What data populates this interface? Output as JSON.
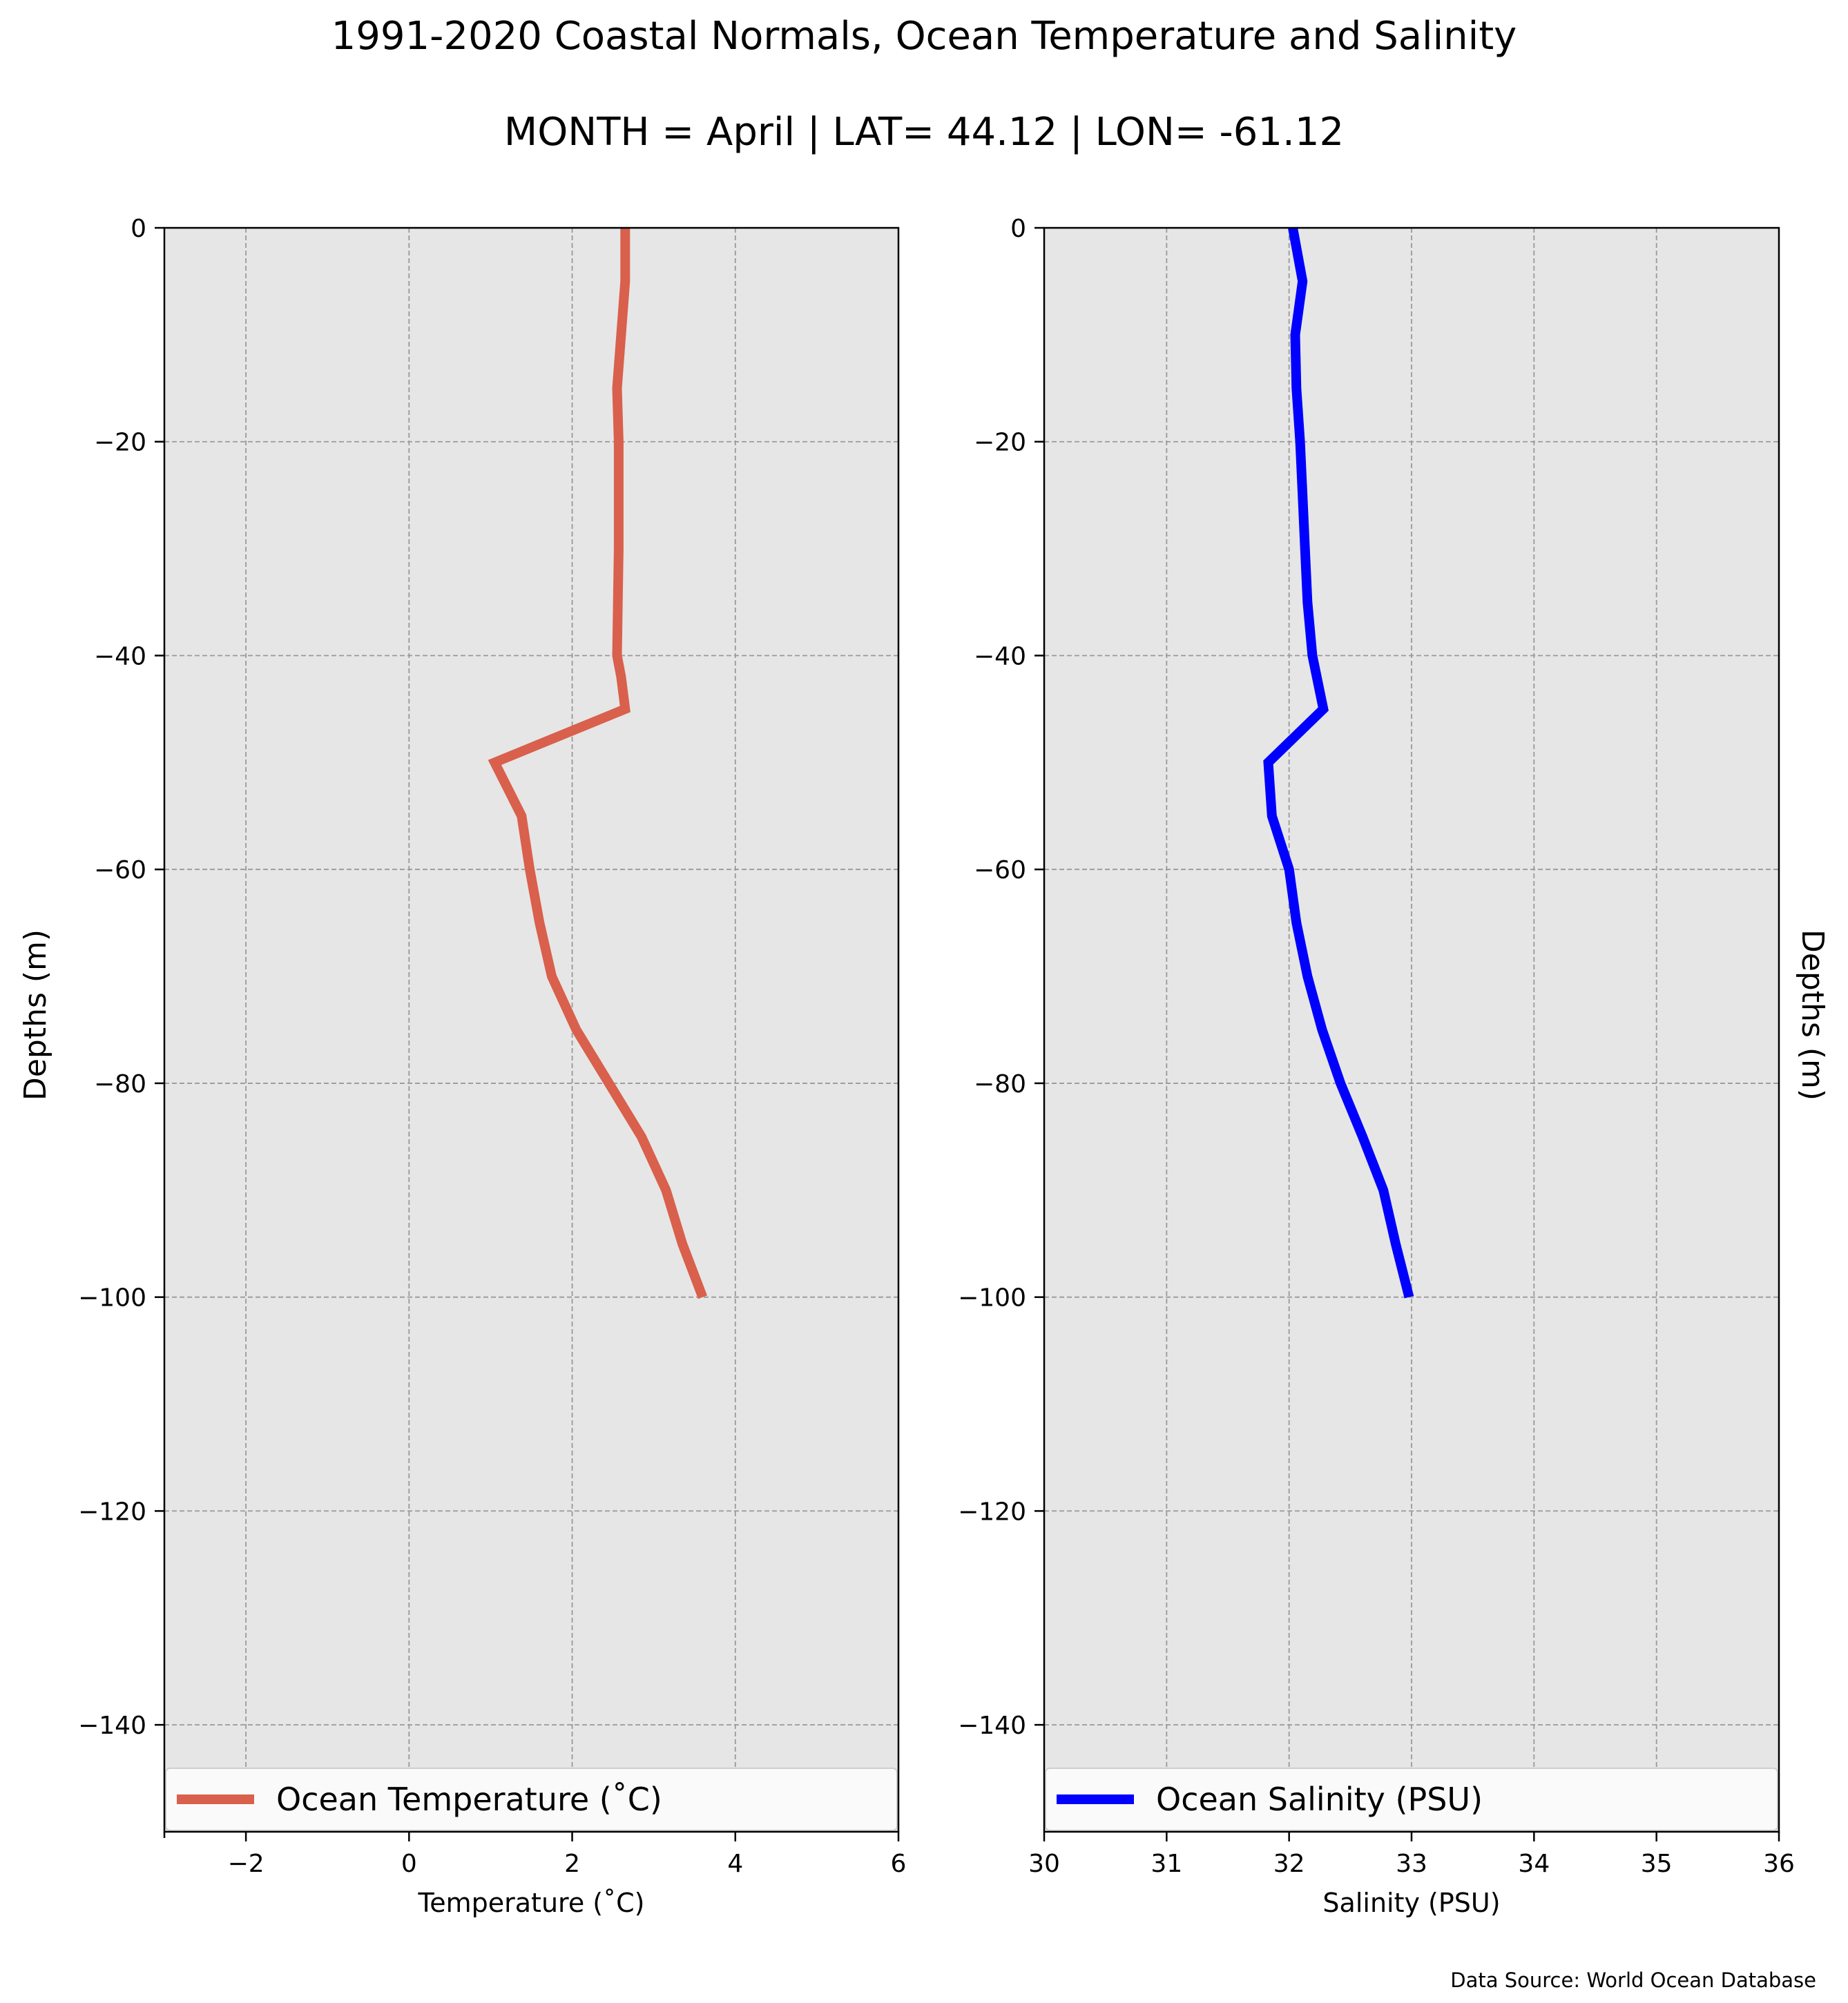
{
  "title": "1991-2020 Coastal Normals, Ocean Temperature and Salinity",
  "subtitle": "MONTH = April | LAT= 44.12 | LON= -61.12",
  "source": "Data Source: World Ocean Database",
  "colors": {
    "temperature": "#d9604c",
    "salinity": "#0000ff",
    "plot_background": "#e6e6e6",
    "grid": "#999999"
  },
  "chart_data": [
    {
      "type": "line",
      "xlabel": "Temperature ($^\\circ$C)",
      "xlabel_display": "Temperature (˚C)",
      "ylabel": "Depths (m)",
      "xlim": [
        -3,
        6
      ],
      "ylim": [
        -150,
        0
      ],
      "xticks": [
        -2,
        0,
        2,
        4,
        6
      ],
      "xtick_labels": [
        "−2",
        "0",
        "2",
        "4",
        "6"
      ],
      "yticks": [
        0,
        -20,
        -40,
        -60,
        -80,
        -100,
        -120,
        -140
      ],
      "ytick_labels": [
        "0",
        "−20",
        "−40",
        "−60",
        "−80",
        "−100",
        "−120",
        "−140"
      ],
      "grid": true,
      "legend_position": "bottom",
      "series": [
        {
          "name": "Ocean Temperature (˚C)",
          "color": "#d9604c",
          "x": [
            2.65,
            2.65,
            2.6,
            2.55,
            2.57,
            2.57,
            2.57,
            2.56,
            2.55,
            2.6,
            2.65,
            1.05,
            1.38,
            1.48,
            1.6,
            1.75,
            2.05,
            2.45,
            2.85,
            3.15,
            3.35,
            3.6
          ],
          "y": [
            0,
            -5,
            -10,
            -15,
            -20,
            -25,
            -30,
            -35,
            -40,
            -42,
            -45,
            -50,
            -55,
            -60,
            -65,
            -70,
            -75,
            -80,
            -85,
            -90,
            -95,
            -100
          ]
        }
      ]
    },
    {
      "type": "line",
      "xlabel": "Salinity (PSU)",
      "ylabel": "Depths (m)",
      "xlim": [
        30,
        36
      ],
      "ylim": [
        -150,
        0
      ],
      "xticks": [
        30,
        31,
        32,
        33,
        34,
        35,
        36
      ],
      "xtick_labels": [
        "30",
        "31",
        "32",
        "33",
        "34",
        "35",
        "36"
      ],
      "yticks": [
        0,
        -20,
        -40,
        -60,
        -80,
        -100,
        -120,
        -140
      ],
      "ytick_labels": [
        "0",
        "−20",
        "−40",
        "−60",
        "−80",
        "−100",
        "−120",
        "−140"
      ],
      "grid": true,
      "legend_position": "bottom",
      "series": [
        {
          "name": "Ocean Salinity (PSU)",
          "color": "#0000ff",
          "x": [
            32.03,
            32.11,
            32.05,
            32.06,
            32.09,
            32.11,
            32.13,
            32.15,
            32.19,
            32.28,
            31.83,
            31.86,
            32.0,
            32.06,
            32.15,
            32.27,
            32.42,
            32.6,
            32.77,
            32.87,
            32.98
          ],
          "y": [
            0,
            -5,
            -10,
            -15,
            -20,
            -25,
            -30,
            -35,
            -40,
            -45,
            -50,
            -55,
            -60,
            -65,
            -70,
            -75,
            -80,
            -85,
            -90,
            -95,
            -100
          ]
        }
      ]
    }
  ]
}
